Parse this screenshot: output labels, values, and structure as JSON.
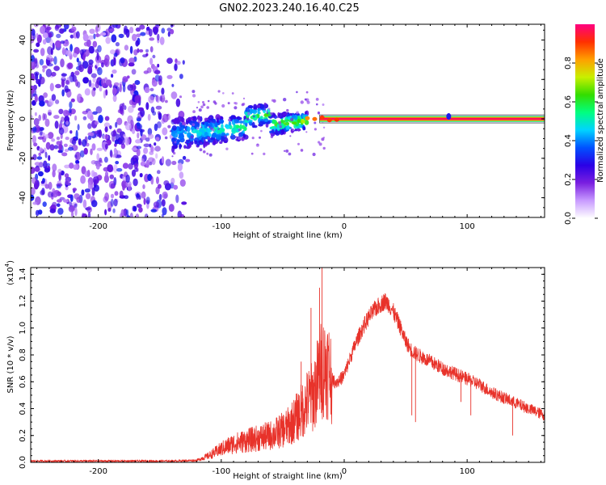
{
  "title": "GN02.2023.240.16.40.C25",
  "chart_data": [
    {
      "type": "heatmap",
      "name": "spectrogram",
      "xlabel": "Height of straight line (km)",
      "ylabel": "Frequency (Hz)",
      "xlim": [
        -255,
        163
      ],
      "ylim": [
        -50,
        48
      ],
      "xticks": [
        -200,
        -100,
        0,
        100
      ],
      "xtick_labels": [
        "-200",
        "-100",
        "0",
        "100"
      ],
      "yticks": [
        -40,
        -20,
        0,
        20,
        40
      ],
      "ytick_labels": [
        "-40",
        "-20",
        "0",
        "20",
        "40"
      ],
      "colorbar": {
        "label": "Normalized spectral amplitude",
        "range": [
          0,
          1
        ],
        "ticks": [
          0.0,
          0.2,
          0.4,
          0.6,
          0.8
        ],
        "tick_labels": [
          "0.0",
          "0.2",
          "0.4",
          "0.6",
          "0.8"
        ],
        "colors": [
          "#ffffff",
          "#c89bff",
          "#7a1fe0",
          "#2a00e6",
          "#0052ff",
          "#00d4ff",
          "#00ff80",
          "#33dd00",
          "#c8f000",
          "#ffa000",
          "#ff3000",
          "#ff0080"
        ]
      },
      "features": [
        {
          "region": "broadband noise",
          "x_range": [
            -255,
            -125
          ],
          "freq_range": [
            -50,
            48
          ],
          "amplitude": "low (0.1-0.3)"
        },
        {
          "region": "signal onset cluster",
          "x_range": [
            -140,
            -30
          ],
          "freq_range": [
            -18,
            12
          ],
          "amplitude": "0.2-0.6"
        },
        {
          "region": "steady tone",
          "x_range": [
            -20,
            163
          ],
          "frequency": 0,
          "amplitude": "~0.95"
        }
      ]
    },
    {
      "type": "line",
      "name": "snr",
      "xlabel": "Height of straight line (km)",
      "ylabel": "SNR (10 * v/v)",
      "y_multiplier": "(x10",
      "y_exponent": "4",
      "y_multiplier_close": ")",
      "xlim": [
        -255,
        163
      ],
      "ylim": [
        0,
        1.45
      ],
      "xticks": [
        -200,
        -100,
        0,
        100
      ],
      "xtick_labels": [
        "-200",
        "-100",
        "0",
        "100"
      ],
      "yticks": [
        0.0,
        0.2,
        0.4,
        0.6,
        0.8,
        1.0,
        1.2,
        1.4
      ],
      "ytick_labels": [
        "0.0",
        "0.2",
        "0.4",
        "0.6",
        "0.8",
        "1.0",
        "1.2",
        "1.4"
      ],
      "color": "#e8322a",
      "series": [
        {
          "name": "SNR",
          "x": [
            -255,
            -230,
            -200,
            -170,
            -140,
            -120,
            -110,
            -100,
            -90,
            -80,
            -70,
            -60,
            -50,
            -45,
            -40,
            -35,
            -30,
            -25,
            -20,
            -18,
            -15,
            -12,
            -10,
            -8,
            -5,
            0,
            5,
            10,
            15,
            20,
            25,
            30,
            33,
            36,
            40,
            45,
            50,
            55,
            60,
            70,
            80,
            90,
            100,
            110,
            120,
            130,
            140,
            150,
            163
          ],
          "y": [
            0.01,
            0.01,
            0.01,
            0.01,
            0.01,
            0.015,
            0.05,
            0.1,
            0.14,
            0.16,
            0.18,
            0.2,
            0.24,
            0.27,
            0.32,
            0.38,
            0.45,
            0.5,
            0.66,
            0.7,
            0.72,
            0.68,
            0.62,
            0.6,
            0.6,
            0.65,
            0.78,
            0.9,
            1.0,
            1.08,
            1.14,
            1.18,
            1.2,
            1.18,
            1.12,
            1.02,
            0.9,
            0.83,
            0.8,
            0.75,
            0.7,
            0.66,
            0.62,
            0.58,
            0.52,
            0.48,
            0.44,
            0.4,
            0.35
          ]
        }
      ],
      "spikes": [
        {
          "x": -18,
          "y": 1.45
        },
        {
          "x": -20,
          "y": 1.3
        },
        {
          "x": -27,
          "y": 1.15
        },
        {
          "x": -35,
          "y": 0.75
        },
        {
          "x": 58,
          "y": 0.3
        },
        {
          "x": 55,
          "y": 0.35
        },
        {
          "x": 103,
          "y": 0.35
        },
        {
          "x": 137,
          "y": 0.2
        },
        {
          "x": 95,
          "y": 0.45
        }
      ]
    }
  ]
}
